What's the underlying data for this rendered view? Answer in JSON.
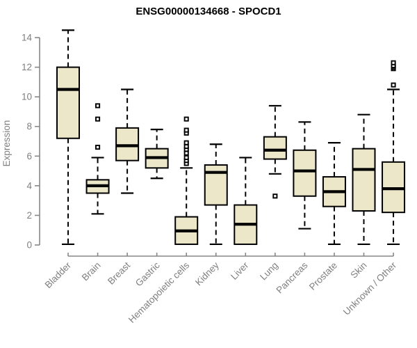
{
  "page": {
    "background": "#ffffff"
  },
  "chart_data": {
    "type": "boxplot",
    "title": "ENSG00000134668 - SPOCD1",
    "xlabel": "",
    "ylabel": "Expression",
    "ylim": [
      0,
      14.8
    ],
    "yticks": [
      0,
      2,
      4,
      6,
      8,
      10,
      12,
      14
    ],
    "grid": false,
    "legend": "none",
    "colors": {
      "box_fill": "#EDE7CA",
      "box_stroke": "#000000",
      "median": "#000000",
      "whisker": "#000000",
      "outlier_stroke": "#000000",
      "outlier_fill": "#ffffff",
      "axis_line": "#878787",
      "axis_text": "#7f7f7f",
      "title_text": "#000000"
    },
    "categories": [
      "Bladder",
      "Brain",
      "Breast",
      "Gastric",
      "Hematopoietic cells",
      "Kidney",
      "Liver",
      "Lung",
      "Pancreas",
      "Prostate",
      "Skin",
      "Unknown / Other"
    ],
    "series": [
      {
        "name": "Bladder",
        "whisker_low": 0.05,
        "q1": 7.2,
        "median": 10.5,
        "q3": 12.0,
        "whisker_high": 14.5,
        "outliers": []
      },
      {
        "name": "Brain",
        "whisker_low": 2.1,
        "q1": 3.5,
        "median": 4.0,
        "q3": 4.4,
        "whisker_high": 5.9,
        "outliers": [
          6.6,
          8.5,
          9.4
        ]
      },
      {
        "name": "Breast",
        "whisker_low": 3.5,
        "q1": 5.7,
        "median": 6.7,
        "q3": 7.9,
        "whisker_high": 10.5,
        "outliers": []
      },
      {
        "name": "Gastric",
        "whisker_low": 4.5,
        "q1": 5.2,
        "median": 5.9,
        "q3": 6.5,
        "whisker_high": 7.8,
        "outliers": []
      },
      {
        "name": "Hematopoietic cells",
        "whisker_low": 0.05,
        "q1": 0.05,
        "median": 0.95,
        "q3": 1.9,
        "whisker_high": 5.2,
        "outliers": [
          5.5,
          5.7,
          5.9,
          6.2,
          6.45,
          6.65,
          6.9,
          7.55,
          7.75,
          8.5
        ]
      },
      {
        "name": "Kidney",
        "whisker_low": 0.05,
        "q1": 2.7,
        "median": 4.9,
        "q3": 5.4,
        "whisker_high": 6.8,
        "outliers": []
      },
      {
        "name": "Liver",
        "whisker_low": 0.05,
        "q1": 0.05,
        "median": 1.4,
        "q3": 2.7,
        "whisker_high": 5.9,
        "outliers": []
      },
      {
        "name": "Lung",
        "whisker_low": 4.8,
        "q1": 5.8,
        "median": 6.4,
        "q3": 7.3,
        "whisker_high": 9.4,
        "outliers": [
          3.3
        ]
      },
      {
        "name": "Pancreas",
        "whisker_low": 1.1,
        "q1": 3.3,
        "median": 5.0,
        "q3": 6.4,
        "whisker_high": 8.3,
        "outliers": []
      },
      {
        "name": "Prostate",
        "whisker_low": 0.05,
        "q1": 2.6,
        "median": 3.6,
        "q3": 4.6,
        "whisker_high": 6.9,
        "outliers": []
      },
      {
        "name": "Skin",
        "whisker_low": 0.05,
        "q1": 2.3,
        "median": 5.1,
        "q3": 6.5,
        "whisker_high": 8.8,
        "outliers": []
      },
      {
        "name": "Unknown / Other",
        "whisker_low": 0.05,
        "q1": 2.2,
        "median": 3.8,
        "q3": 5.6,
        "whisker_high": 10.5,
        "outliers": [
          10.8,
          11.9,
          12.0,
          12.1,
          12.3
        ]
      }
    ]
  }
}
